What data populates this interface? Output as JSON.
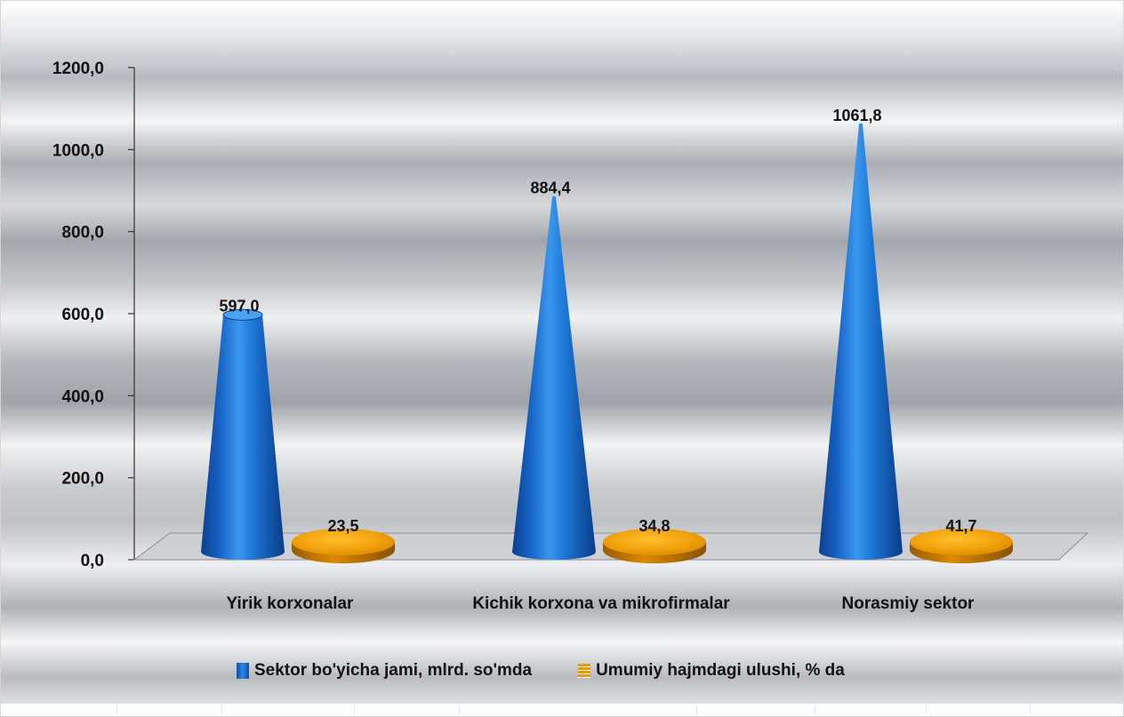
{
  "chart_data": {
    "type": "bar",
    "style": "3d-cone",
    "title": "",
    "xlabel": "",
    "ylabel": "",
    "ylim": [
      0,
      1200
    ],
    "y_ticks": [
      "0,0",
      "200,0",
      "400,0",
      "600,0",
      "800,0",
      "1000,0",
      "1200,0"
    ],
    "categories": [
      "Yirik korxonalar",
      "Kichik korxona va mikrofirmalar",
      "Norasmiy sektor"
    ],
    "series": [
      {
        "name": "Sektor bo'yicha jami, mlrd. so'mda",
        "values": [
          597.0,
          884.4,
          1061.8
        ],
        "labels": [
          "597,0",
          "884,4",
          "1061,8"
        ],
        "color": "#1565c0"
      },
      {
        "name": "Umumiy hajmdagi ulushi, % da",
        "values": [
          23.5,
          34.8,
          41.7
        ],
        "labels": [
          "23,5",
          "34,8",
          "41,7"
        ],
        "color": "#e89b05"
      }
    ],
    "grid": false,
    "legend": "bottom",
    "background": "gradient gray"
  }
}
